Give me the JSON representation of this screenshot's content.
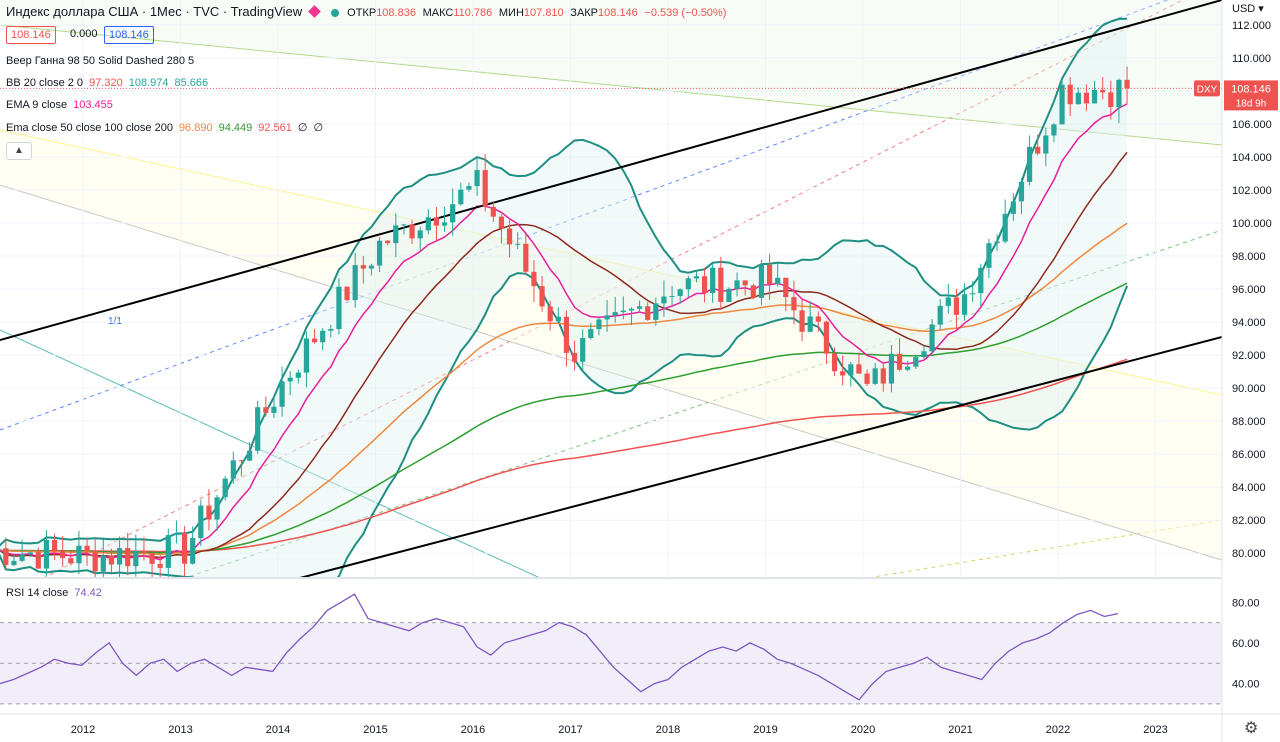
{
  "header": {
    "title": "Индекс доллара США · 1Мес · TVC · TradingView",
    "ohlc": [
      {
        "k": "ОТКР",
        "v": "108.836"
      },
      {
        "k": "МАКС",
        "v": "110.786"
      },
      {
        "k": "МИН",
        "v": "107.810"
      },
      {
        "k": "ЗАКР",
        "v": "108.146"
      }
    ],
    "change": "−0.539 (−0.50%)",
    "bid": "108.146",
    "spread": "0.000",
    "ask": "108.146"
  },
  "indicators": [
    {
      "label": "Веер Ганна 98 50 Solid Dashed 280 5",
      "values": []
    },
    {
      "label": "BB 20 close 2 0",
      "values": [
        {
          "v": "97.320",
          "c": "#ef5350"
        },
        {
          "v": "108.974",
          "c": "#26a69a"
        },
        {
          "v": "85.666",
          "c": "#26a69a"
        }
      ]
    },
    {
      "label": "EMA 9 close",
      "values": [
        {
          "v": "103.455",
          "c": "#e91e9b"
        }
      ]
    },
    {
      "label": "Ema close 50 close 100 close 200",
      "values": [
        {
          "v": "96.890",
          "c": "#f0883e"
        },
        {
          "v": "94.449",
          "c": "#2e9e2e"
        },
        {
          "v": "92.561",
          "c": "#ef5350"
        },
        {
          "v": "∅",
          "c": "#131722"
        },
        {
          "v": "∅",
          "c": "#131722"
        }
      ]
    }
  ],
  "rsi_label": "RSI 14 close",
  "rsi_value": "74.42",
  "currency": "USD",
  "symbol_tag": "DXY",
  "last_price": "108.146",
  "countdown": "18d 9h",
  "fan_label": "1/1",
  "colors": {
    "up": "#26a69a",
    "down": "#ef5350",
    "ema9": "#e91e9b",
    "ema50": "#f0883e",
    "ema100": "#2e9e2e",
    "ema200": "#ef5350",
    "bb": "#1f8f83",
    "rsi": "#7e57c2"
  },
  "chart_data": [
    {
      "type": "candlestick",
      "title": "Индекс доллара США",
      "timeframe": "1M",
      "x_ticks": [
        "2012",
        "2013",
        "2014",
        "2015",
        "2016",
        "2017",
        "2018",
        "2019",
        "2020",
        "2021",
        "2022",
        "2023"
      ],
      "y_ticks": [
        "112.000",
        "110.000",
        "108.000",
        "106.000",
        "104.000",
        "102.000",
        "100.000",
        "98.000",
        "96.000",
        "94.000",
        "92.000",
        "90.000",
        "88.000",
        "86.000",
        "84.000",
        "82.000",
        "80.000"
      ],
      "ylim": [
        78.5,
        113.5
      ],
      "grid": true,
      "series": [
        {
          "name": "DXY",
          "last": 108.146,
          "annual_closes": {
            "2011": 80.2,
            "2012": 79.8,
            "2013": 80.2,
            "2014": 90.3,
            "2015": 98.7,
            "2016": 102.2,
            "2017": 92.1,
            "2018": 96.2,
            "2019": 96.4,
            "2020": 89.9,
            "2021": 95.7,
            "2022": 108.1
          }
        },
        {
          "name": "EMA 9 close",
          "last": 103.455
        },
        {
          "name": "EMA 50",
          "last": 96.89
        },
        {
          "name": "EMA 100",
          "last": 94.449
        },
        {
          "name": "EMA 200",
          "last": 92.561
        },
        {
          "name": "BB upper",
          "last": 108.974
        },
        {
          "name": "BB basis",
          "last": 97.32
        },
        {
          "name": "BB lower",
          "last": 85.666
        }
      ]
    },
    {
      "type": "line",
      "title": "RSI 14 close",
      "y_ticks": [
        "80.00",
        "60.00",
        "40.00"
      ],
      "ylim": [
        26,
        90
      ],
      "bands": [
        30,
        50,
        70
      ],
      "series": [
        {
          "name": "RSI",
          "last": 74.42,
          "values": [
            40,
            42,
            45,
            48,
            52,
            50,
            49,
            55,
            60,
            50,
            44,
            50,
            52,
            46,
            50,
            52,
            48,
            44,
            48,
            47,
            46,
            55,
            62,
            68,
            76,
            80,
            84,
            72,
            70,
            68,
            66,
            70,
            72,
            70,
            68,
            58,
            54,
            60,
            62,
            64,
            66,
            70,
            68,
            64,
            56,
            48,
            42,
            36,
            40,
            42,
            48,
            52,
            56,
            58,
            56,
            60,
            57,
            52,
            50,
            47,
            44,
            40,
            36,
            32,
            40,
            46,
            48,
            50,
            53,
            48,
            46,
            44,
            42,
            50,
            56,
            60,
            62,
            65,
            70,
            74,
            76,
            73,
            74.42
          ]
        }
      ]
    }
  ]
}
